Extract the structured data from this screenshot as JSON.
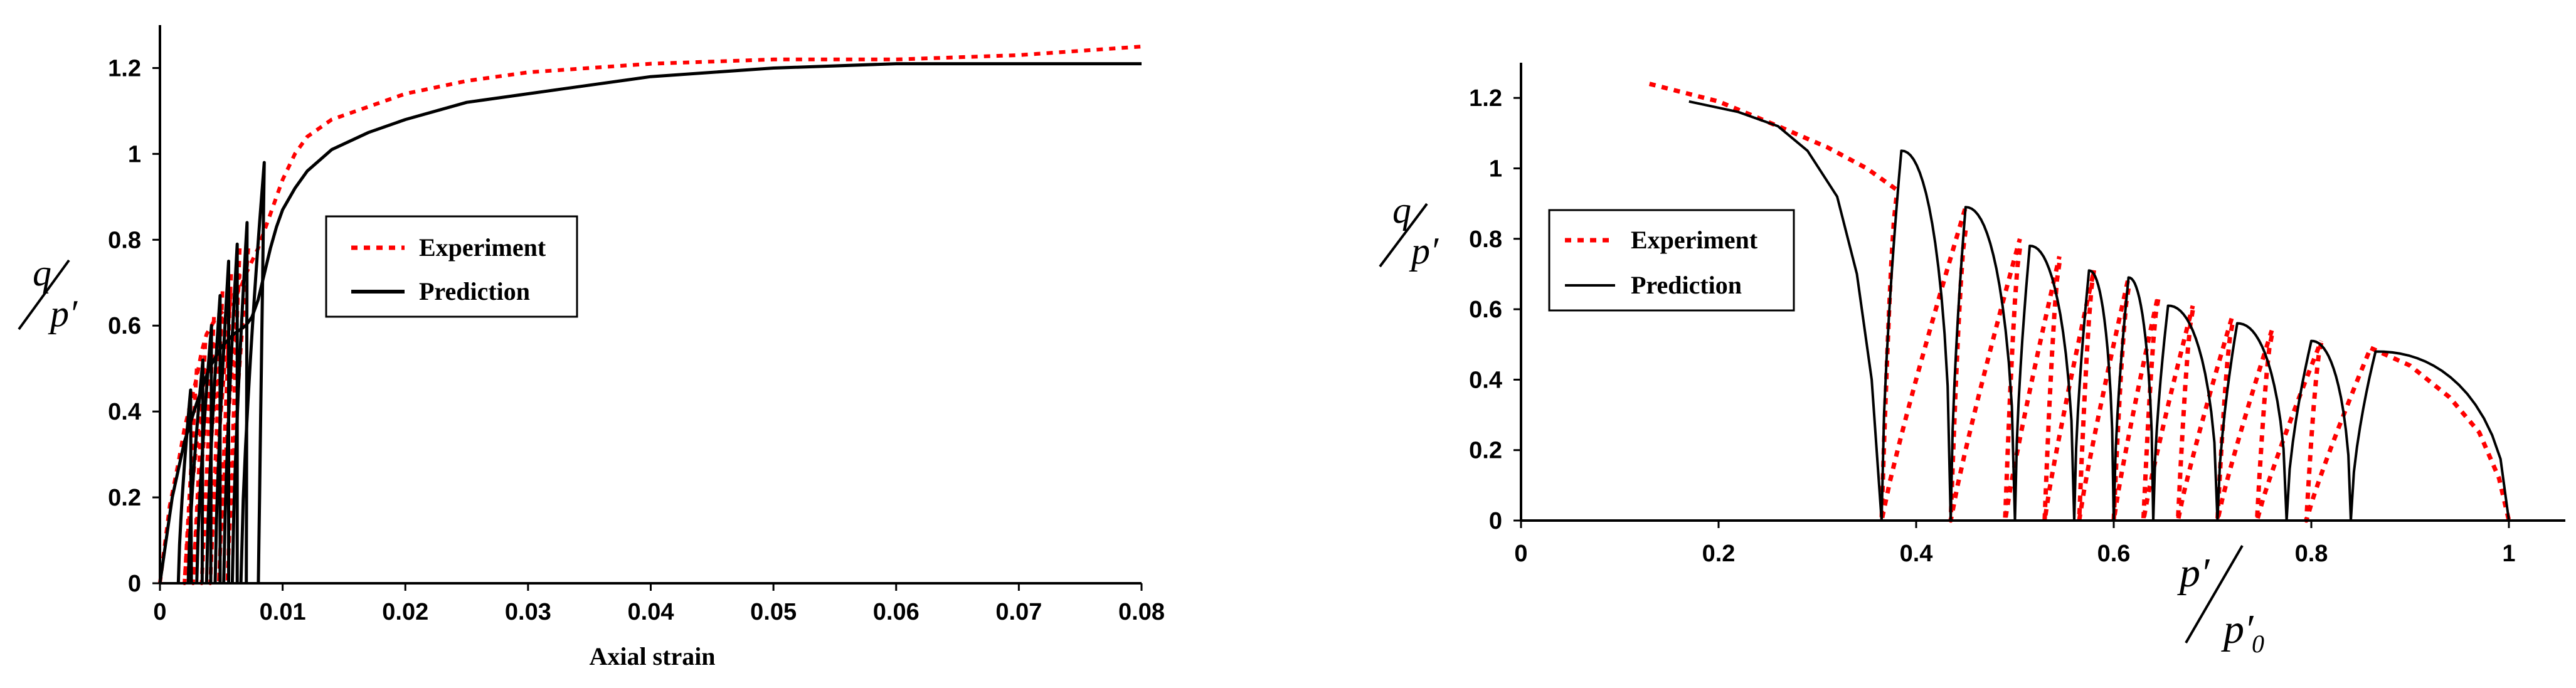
{
  "colors": {
    "experiment": "#ff0000",
    "prediction": "#000000",
    "axis": "#000000"
  },
  "chart_data": [
    {
      "type": "line",
      "title": "",
      "xlabel": "Axial strain",
      "ylabel": "q/p'",
      "ylabel_num": "q",
      "ylabel_den": "p′",
      "xlim": [
        0,
        0.08
      ],
      "ylim": [
        0,
        1.3
      ],
      "xticks": [
        0,
        0.01,
        0.02,
        0.03,
        0.04,
        0.05,
        0.06,
        0.07,
        0.08
      ],
      "xtick_labels": [
        "0",
        "0.01",
        "0.02",
        "0.03",
        "0.04",
        "0.05",
        "0.06",
        "0.07",
        "0.08"
      ],
      "yticks": [
        0,
        0.2,
        0.4,
        0.6,
        0.8,
        1.0,
        1.2
      ],
      "ytick_labels": [
        "0",
        "0.2",
        "0.4",
        "0.6",
        "0.8",
        "1",
        "1.2"
      ],
      "grid": false,
      "legend": "center",
      "series": [
        {
          "name": "Experiment",
          "style": "dotted",
          "x": [
            0,
            0.0008,
            0.0015,
            0.002,
            0.0025,
            0.003,
            0.0034,
            0.0038,
            0.0042,
            0.0046,
            0.005,
            0.0054,
            0.0058,
            0.0062,
            0.0066,
            0.007,
            0.0075,
            0.008,
            0.0085,
            0.009,
            0.0095,
            0.01,
            0.011,
            0.012,
            0.014,
            0.017,
            0.02,
            0.025,
            0.03,
            0.04,
            0.05,
            0.06,
            0.07,
            0.08
          ],
          "y": [
            0,
            0.18,
            0.28,
            0.36,
            0.42,
            0.48,
            0.54,
            0.58,
            0.6,
            0.62,
            0.63,
            0.64,
            0.65,
            0.67,
            0.69,
            0.72,
            0.75,
            0.78,
            0.82,
            0.86,
            0.9,
            0.94,
            1.0,
            1.04,
            1.08,
            1.11,
            1.14,
            1.17,
            1.19,
            1.21,
            1.22,
            1.22,
            1.23,
            1.25
          ]
        },
        {
          "name": "Prediction",
          "style": "solid",
          "x": [
            0,
            0.001,
            0.002,
            0.003,
            0.004,
            0.005,
            0.006,
            0.007,
            0.0075,
            0.008,
            0.0085,
            0.009,
            0.0095,
            0.01,
            0.011,
            0.012,
            0.014,
            0.017,
            0.02,
            0.025,
            0.03,
            0.035,
            0.04,
            0.05,
            0.06,
            0.07,
            0.08
          ],
          "y": [
            0,
            0.2,
            0.33,
            0.42,
            0.5,
            0.55,
            0.58,
            0.6,
            0.62,
            0.66,
            0.72,
            0.78,
            0.83,
            0.87,
            0.92,
            0.96,
            1.01,
            1.05,
            1.08,
            1.12,
            1.14,
            1.16,
            1.18,
            1.2,
            1.21,
            1.21,
            1.21
          ]
        }
      ],
      "cycles": {
        "prediction_peaks_x": [
          0.0025,
          0.0035,
          0.0042,
          0.0049,
          0.0056,
          0.0063,
          0.0071,
          0.0085
        ],
        "prediction_peaks_y": [
          0.45,
          0.52,
          0.6,
          0.67,
          0.75,
          0.79,
          0.84,
          0.98
        ],
        "prediction_bottoms_x": [
          0.0015,
          0.0023,
          0.003,
          0.0038,
          0.0045,
          0.0052,
          0.0059,
          0.0066
        ],
        "experiment_peaks_x": [
          0.003,
          0.0037,
          0.0044,
          0.0051,
          0.0058,
          0.0065
        ],
        "experiment_peaks_y": [
          0.5,
          0.56,
          0.62,
          0.68,
          0.72,
          0.78
        ],
        "experiment_bottoms_x": [
          0.002,
          0.0027,
          0.0034,
          0.0041,
          0.0048,
          0.0055
        ]
      }
    },
    {
      "type": "line",
      "title": "",
      "xlabel": "p'/p'0",
      "xlabel_num": "p′",
      "xlabel_den": "p′",
      "xlabel_den_sub": "0",
      "ylabel": "q/p'",
      "ylabel_num": "q",
      "ylabel_den": "p′",
      "xlim": [
        0,
        1.05
      ],
      "ylim": [
        0,
        1.3
      ],
      "xticks": [
        0,
        0.2,
        0.4,
        0.6,
        0.8,
        1.0
      ],
      "xtick_labels": [
        "0",
        "0.2",
        "0.4",
        "0.6",
        "0.8",
        "1"
      ],
      "yticks": [
        0,
        0.2,
        0.4,
        0.6,
        0.8,
        1.0,
        1.2
      ],
      "ytick_labels": [
        "0",
        "0.2",
        "0.4",
        "0.6",
        "0.8",
        "1",
        "1.2"
      ],
      "grid": false,
      "legend": "left",
      "series": [
        {
          "name": "Experiment",
          "style": "dotted",
          "envelope_x": [
            0.13,
            0.2,
            0.26,
            0.31,
            0.35,
            0.38
          ],
          "envelope_y": [
            1.24,
            1.19,
            1.12,
            1.06,
            1.0,
            0.94
          ],
          "cycles": [
            {
              "x0": 0.38,
              "x_bottom": 0.365,
              "x_top": 0.45,
              "y_top": 0.89
            },
            {
              "x0": 0.45,
              "x_bottom": 0.435,
              "x_top": 0.505,
              "y_top": 0.8
            },
            {
              "x0": 0.505,
              "x_bottom": 0.49,
              "x_top": 0.545,
              "y_top": 0.75
            },
            {
              "x0": 0.545,
              "x_bottom": 0.53,
              "x_top": 0.58,
              "y_top": 0.71
            },
            {
              "x0": 0.58,
              "x_bottom": 0.565,
              "x_top": 0.615,
              "y_top": 0.69
            },
            {
              "x0": 0.615,
              "x_bottom": 0.6,
              "x_top": 0.645,
              "y_top": 0.64
            },
            {
              "x0": 0.645,
              "x_bottom": 0.63,
              "x_top": 0.68,
              "y_top": 0.61
            },
            {
              "x0": 0.68,
              "x_bottom": 0.665,
              "x_top": 0.72,
              "y_top": 0.58
            },
            {
              "x0": 0.72,
              "x_bottom": 0.705,
              "x_top": 0.76,
              "y_top": 0.54
            },
            {
              "x0": 0.76,
              "x_bottom": 0.745,
              "x_top": 0.81,
              "y_top": 0.51
            },
            {
              "x0": 0.81,
              "x_bottom": 0.795,
              "x_top": 0.86,
              "y_top": 0.49
            }
          ],
          "tail_x": [
            0.86,
            0.9,
            0.94,
            0.97,
            0.99,
            1.0
          ],
          "tail_y": [
            0.49,
            0.44,
            0.35,
            0.25,
            0.12,
            0.0
          ]
        },
        {
          "name": "Prediction",
          "style": "solid",
          "envelope_x": [
            0.17,
            0.22,
            0.26,
            0.29,
            0.32,
            0.34,
            0.355,
            0.365
          ],
          "envelope_y": [
            1.19,
            1.16,
            1.12,
            1.05,
            0.92,
            0.7,
            0.4,
            0.0
          ],
          "cycles": [
            {
              "x_start": 0.365,
              "x_peak": 0.385,
              "y_peak": 1.05,
              "x_end": 0.435
            },
            {
              "x_start": 0.435,
              "x_peak": 0.45,
              "y_peak": 0.89,
              "x_end": 0.5
            },
            {
              "x_start": 0.5,
              "x_peak": 0.515,
              "y_peak": 0.78,
              "x_end": 0.56
            },
            {
              "x_start": 0.56,
              "x_peak": 0.575,
              "y_peak": 0.71,
              "x_end": 0.6
            },
            {
              "x_start": 0.6,
              "x_peak": 0.615,
              "y_peak": 0.69,
              "x_end": 0.64
            },
            {
              "x_start": 0.64,
              "x_peak": 0.655,
              "y_peak": 0.61,
              "x_end": 0.705
            },
            {
              "x_start": 0.705,
              "x_peak": 0.725,
              "y_peak": 0.56,
              "x_end": 0.775
            },
            {
              "x_start": 0.775,
              "x_peak": 0.8,
              "y_peak": 0.51,
              "x_end": 0.84
            },
            {
              "x_start": 0.84,
              "x_peak": 0.865,
              "y_peak": 0.48,
              "x_end": 1.0
            }
          ]
        }
      ]
    }
  ]
}
